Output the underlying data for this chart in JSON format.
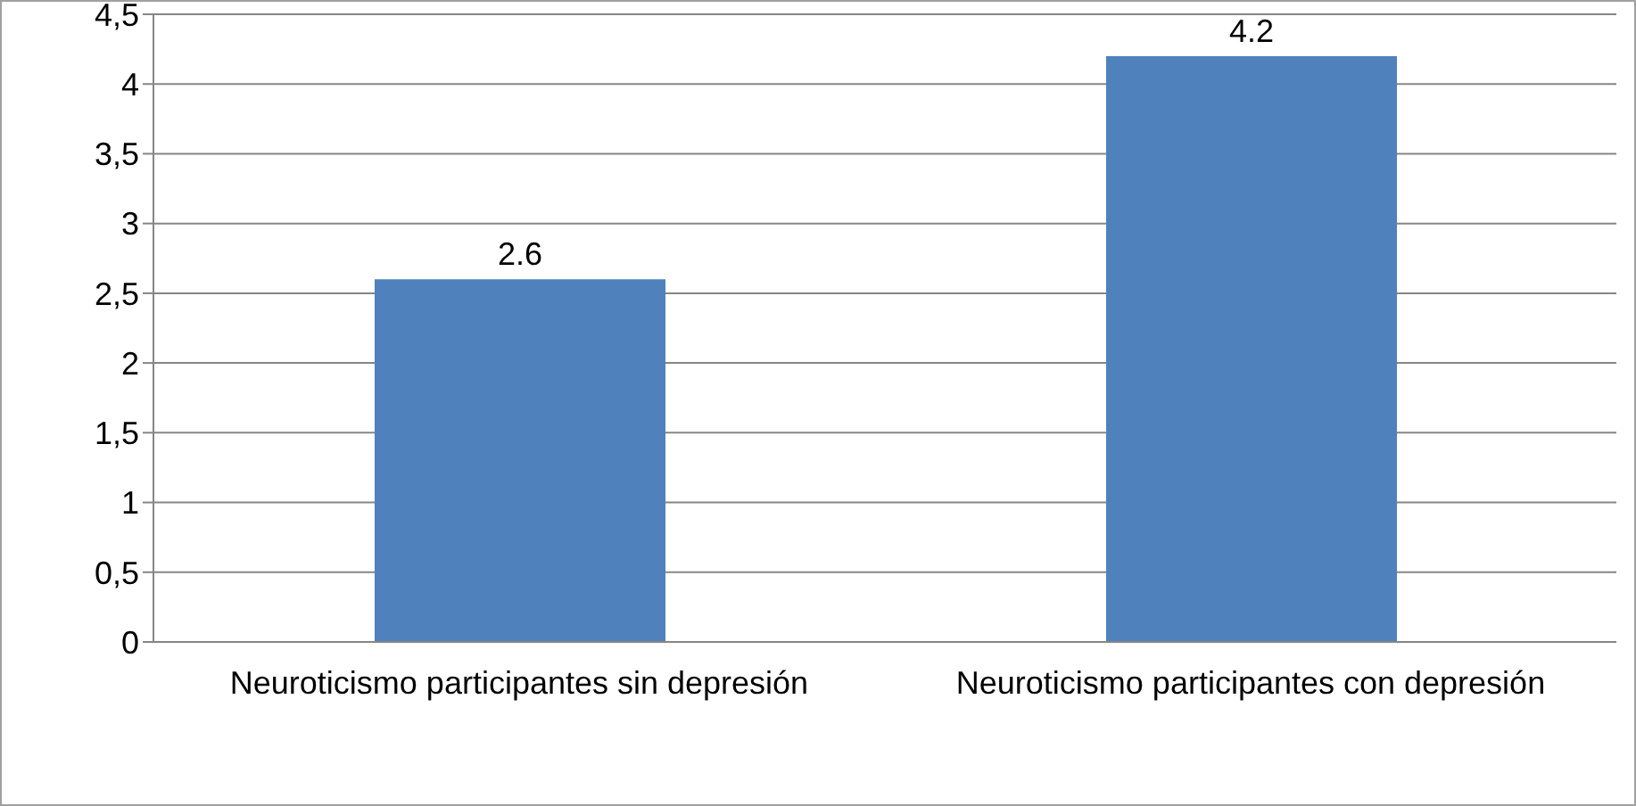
{
  "chart_data": {
    "type": "bar",
    "categories": [
      "Neuroticismo participantes sin depresión",
      "Neuroticismo participantes con depresión"
    ],
    "values": [
      2.6,
      4.2
    ],
    "color": "#4f81bd",
    "data_labels": true,
    "grid": "y",
    "ylim": [
      0,
      4.5
    ],
    "yticks": [
      0,
      {
        "value": 0.5,
        "label": "0,5"
      },
      1,
      {
        "value": 1.5,
        "label": "1,5"
      },
      2,
      {
        "value": 2.5,
        "label": "2,5"
      },
      3,
      {
        "value": 3.5,
        "label": "3,5"
      },
      4,
      {
        "value": 4.5,
        "label": "4,5"
      }
    ]
  }
}
